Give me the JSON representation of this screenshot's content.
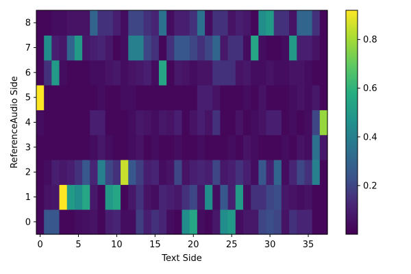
{
  "chart_data": {
    "type": "heatmap",
    "title": "",
    "xlabel": "Text Side",
    "ylabel": "ReferenceAudio Side",
    "x_ticks": [
      0,
      5,
      10,
      15,
      20,
      25,
      30,
      35
    ],
    "y_ticks": [
      0,
      1,
      2,
      3,
      4,
      5,
      6,
      7,
      8
    ],
    "xlim": [
      -0.5,
      37.5
    ],
    "ylim": [
      -0.5,
      8.5
    ],
    "colorbar": {
      "min": 0.0,
      "max": 0.92,
      "ticks": [
        0.2,
        0.4,
        0.6,
        0.8
      ],
      "colormap": "viridis"
    },
    "rows_from_y0": [
      [
        0.02,
        0.25,
        0.25,
        0.02,
        0.02,
        0.04,
        0.05,
        0.06,
        0.02,
        0.1,
        0.12,
        0.04,
        0.04,
        0.18,
        0.1,
        0.15,
        0.12,
        0.04,
        0.02,
        0.45,
        0.55,
        0.04,
        0.02,
        0.08,
        0.45,
        0.5,
        0.04,
        0.08,
        0.08,
        0.2,
        0.22,
        0.2,
        0.06,
        0.15,
        0.12,
        0.12,
        0.02,
        0.02
      ],
      [
        0.02,
        0.06,
        0.08,
        0.92,
        0.5,
        0.45,
        0.55,
        0.08,
        0.02,
        0.5,
        0.55,
        0.02,
        0.08,
        0.15,
        0.06,
        0.04,
        0.12,
        0.1,
        0.08,
        0.15,
        0.2,
        0.08,
        0.45,
        0.04,
        0.25,
        0.1,
        0.5,
        0.04,
        0.15,
        0.15,
        0.2,
        0.22,
        0.08,
        0.06,
        0.04,
        0.06,
        0.02,
        0.02
      ],
      [
        0.02,
        0.04,
        0.1,
        0.08,
        0.1,
        0.15,
        0.25,
        0.12,
        0.4,
        0.2,
        0.15,
        0.85,
        0.25,
        0.18,
        0.1,
        0.12,
        0.04,
        0.06,
        0.2,
        0.06,
        0.1,
        0.12,
        0.1,
        0.2,
        0.08,
        0.1,
        0.15,
        0.1,
        0.04,
        0.25,
        0.1,
        0.3,
        0.04,
        0.12,
        0.2,
        0.15,
        0.4,
        0.02
      ],
      [
        0.02,
        0.02,
        0.02,
        0.02,
        0.02,
        0.02,
        0.02,
        0.04,
        0.08,
        0.04,
        0.02,
        0.02,
        0.04,
        0.06,
        0.02,
        0.04,
        0.02,
        0.02,
        0.04,
        0.02,
        0.02,
        0.04,
        0.02,
        0.02,
        0.02,
        0.04,
        0.02,
        0.06,
        0.04,
        0.02,
        0.02,
        0.02,
        0.04,
        0.02,
        0.06,
        0.04,
        0.35,
        0.08
      ],
      [
        0.04,
        0.02,
        0.02,
        0.02,
        0.02,
        0.02,
        0.02,
        0.1,
        0.1,
        0.02,
        0.02,
        0.02,
        0.04,
        0.08,
        0.06,
        0.04,
        0.08,
        0.06,
        0.1,
        0.02,
        0.06,
        0.1,
        0.06,
        0.15,
        0.02,
        0.02,
        0.06,
        0.02,
        0.04,
        0.06,
        0.1,
        0.1,
        0.02,
        0.04,
        0.02,
        0.04,
        0.2,
        0.78
      ],
      [
        0.92,
        0.02,
        0.02,
        0.02,
        0.02,
        0.02,
        0.02,
        0.02,
        0.04,
        0.02,
        0.02,
        0.04,
        0.04,
        0.02,
        0.02,
        0.02,
        0.02,
        0.02,
        0.02,
        0.02,
        0.02,
        0.1,
        0.1,
        0.06,
        0.02,
        0.02,
        0.02,
        0.04,
        0.02,
        0.06,
        0.02,
        0.02,
        0.02,
        0.04,
        0.06,
        0.04,
        0.08,
        0.02
      ],
      [
        0.02,
        0.15,
        0.5,
        0.04,
        0.02,
        0.02,
        0.02,
        0.04,
        0.04,
        0.06,
        0.08,
        0.04,
        0.06,
        0.08,
        0.1,
        0.04,
        0.55,
        0.02,
        0.08,
        0.06,
        0.04,
        0.06,
        0.06,
        0.15,
        0.15,
        0.15,
        0.06,
        0.08,
        0.04,
        0.04,
        0.06,
        0.04,
        0.04,
        0.06,
        0.06,
        0.04,
        0.02,
        0.02
      ],
      [
        0.02,
        0.45,
        0.1,
        0.08,
        0.3,
        0.5,
        0.08,
        0.1,
        0.12,
        0.08,
        0.02,
        0.04,
        0.4,
        0.4,
        0.2,
        0.15,
        0.02,
        0.15,
        0.25,
        0.25,
        0.2,
        0.15,
        0.2,
        0.3,
        0.08,
        0.15,
        0.15,
        0.04,
        0.55,
        0.04,
        0.02,
        0.02,
        0.04,
        0.5,
        0.1,
        0.1,
        0.06,
        0.02
      ],
      [
        0.02,
        0.02,
        0.04,
        0.04,
        0.06,
        0.06,
        0.06,
        0.3,
        0.15,
        0.15,
        0.1,
        0.04,
        0.2,
        0.2,
        0.15,
        0.12,
        0.35,
        0.04,
        0.1,
        0.1,
        0.15,
        0.35,
        0.04,
        0.15,
        0.15,
        0.06,
        0.1,
        0.08,
        0.02,
        0.45,
        0.5,
        0.15,
        0.15,
        0.06,
        0.3,
        0.3,
        0.15,
        0.02
      ]
    ]
  }
}
